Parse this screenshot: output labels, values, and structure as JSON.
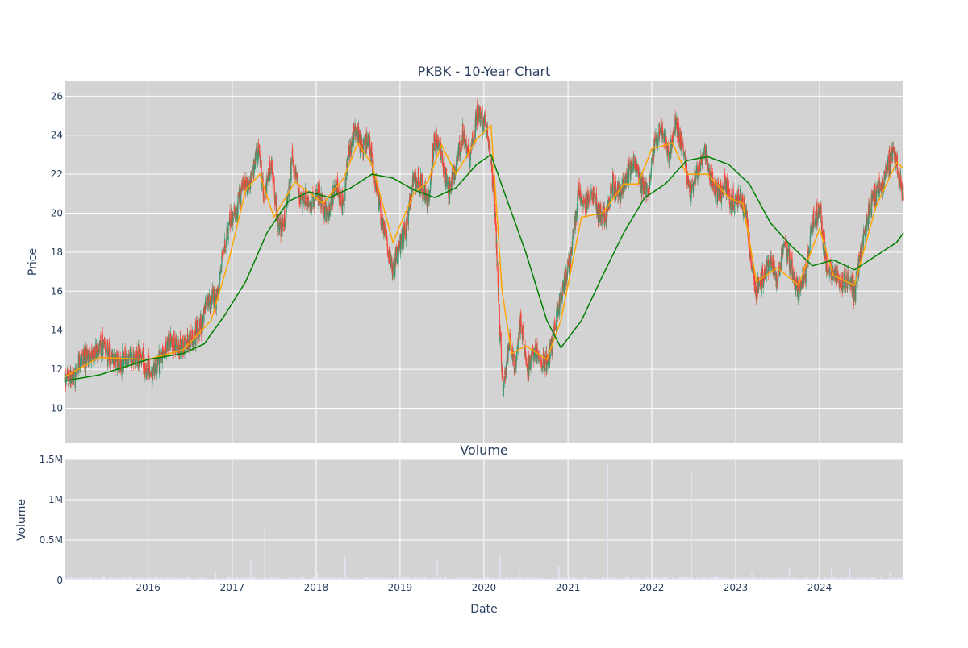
{
  "chart_data": {
    "type": "candlestick",
    "title": "PKBK - 10-Year Chart",
    "x_range": [
      "2015-01-02",
      "2024-12-31"
    ],
    "x_ticks": [
      "2016",
      "2017",
      "2018",
      "2019",
      "2020",
      "2021",
      "2022",
      "2023",
      "2024"
    ],
    "xlabel": "Date",
    "grid": true,
    "price_panel": {
      "ylabel": "Price",
      "ylim": [
        8.2,
        26.8
      ],
      "y_ticks": [
        10,
        12,
        14,
        16,
        18,
        20,
        22,
        24,
        26
      ],
      "colors": {
        "increasing": "#3d9970",
        "decreasing": "#ff4136",
        "ma_short": "#ffa500",
        "ma_long": "#008000",
        "background": "#d3d3d3",
        "grid": "#ffffff"
      },
      "close_path": [
        [
          "2015-01-02",
          11.5
        ],
        [
          "2015-02-15",
          11.6
        ],
        [
          "2015-03-20",
          12.5
        ],
        [
          "2015-05-01",
          12.6
        ],
        [
          "2015-06-01",
          13.2
        ],
        [
          "2015-07-15",
          12.7
        ],
        [
          "2015-09-01",
          12.3
        ],
        [
          "2015-10-15",
          12.6
        ],
        [
          "2015-12-01",
          12.7
        ],
        [
          "2016-01-20",
          11.6
        ],
        [
          "2016-02-20",
          12.6
        ],
        [
          "2016-04-01",
          13.4
        ],
        [
          "2016-05-15",
          13.1
        ],
        [
          "2016-07-01",
          13.3
        ],
        [
          "2016-08-15",
          14.2
        ],
        [
          "2016-09-15",
          15.4
        ],
        [
          "2016-11-01",
          15.8
        ],
        [
          "2016-11-20",
          17.8
        ],
        [
          "2016-12-20",
          19.5
        ],
        [
          "2017-01-20",
          20.1
        ],
        [
          "2017-02-15",
          21.4
        ],
        [
          "2017-03-20",
          21.6
        ],
        [
          "2017-04-25",
          23.2
        ],
        [
          "2017-05-20",
          20.8
        ],
        [
          "2017-06-20",
          22.6
        ],
        [
          "2017-07-20",
          19.3
        ],
        [
          "2017-08-20",
          19.6
        ],
        [
          "2017-09-20",
          22.8
        ],
        [
          "2017-10-20",
          20.8
        ],
        [
          "2017-12-01",
          20.6
        ],
        [
          "2018-01-15",
          21.0
        ],
        [
          "2018-02-15",
          19.8
        ],
        [
          "2018-03-15",
          20.8
        ],
        [
          "2018-04-01",
          21.5
        ],
        [
          "2018-05-01",
          20.4
        ],
        [
          "2018-05-20",
          23.0
        ],
        [
          "2018-06-20",
          24.2
        ],
        [
          "2018-07-20",
          23.5
        ],
        [
          "2018-08-20",
          23.6
        ],
        [
          "2018-09-15",
          21.5
        ],
        [
          "2018-10-10",
          19.8
        ],
        [
          "2018-11-05",
          18.5
        ],
        [
          "2018-12-01",
          17.2
        ],
        [
          "2018-12-25",
          18.0
        ],
        [
          "2019-02-01",
          19.5
        ],
        [
          "2019-03-01",
          21.8
        ],
        [
          "2019-04-01",
          21.5
        ],
        [
          "2019-05-01",
          20.5
        ],
        [
          "2019-06-01",
          23.8
        ],
        [
          "2019-07-01",
          23.0
        ],
        [
          "2019-08-01",
          21.0
        ],
        [
          "2019-09-01",
          22.5
        ],
        [
          "2019-10-01",
          24.0
        ],
        [
          "2019-11-01",
          23.0
        ],
        [
          "2019-12-01",
          25.0
        ],
        [
          "2020-01-15",
          24.5
        ],
        [
          "2020-02-15",
          21.0
        ],
        [
          "2020-03-10",
          14.0
        ],
        [
          "2020-03-25",
          11.0
        ],
        [
          "2020-04-20",
          13.5
        ],
        [
          "2020-05-15",
          12.0
        ],
        [
          "2020-06-10",
          14.5
        ],
        [
          "2020-07-10",
          12.0
        ],
        [
          "2020-08-10",
          13.0
        ],
        [
          "2020-09-10",
          12.2
        ],
        [
          "2020-10-10",
          12.5
        ],
        [
          "2020-11-10",
          14.5
        ],
        [
          "2020-12-10",
          16.0
        ],
        [
          "2021-01-15",
          18.0
        ],
        [
          "2021-02-15",
          21.0
        ],
        [
          "2021-03-15",
          20.5
        ],
        [
          "2021-04-15",
          21.0
        ],
        [
          "2021-05-15",
          20.0
        ],
        [
          "2021-06-15",
          19.8
        ],
        [
          "2021-07-15",
          21.5
        ],
        [
          "2021-08-15",
          21.0
        ],
        [
          "2021-09-15",
          22.0
        ],
        [
          "2021-10-15",
          22.5
        ],
        [
          "2021-11-15",
          21.5
        ],
        [
          "2021-12-15",
          21.0
        ],
        [
          "2022-01-15",
          23.8
        ],
        [
          "2022-02-15",
          24.2
        ],
        [
          "2022-03-15",
          23.0
        ],
        [
          "2022-04-15",
          24.5
        ],
        [
          "2022-05-15",
          23.5
        ],
        [
          "2022-06-15",
          21.0
        ],
        [
          "2022-07-15",
          22.0
        ],
        [
          "2022-08-15",
          23.2
        ],
        [
          "2022-09-15",
          22.0
        ],
        [
          "2022-10-15",
          21.0
        ],
        [
          "2022-11-15",
          21.5
        ],
        [
          "2022-12-15",
          20.5
        ],
        [
          "2023-01-15",
          20.8
        ],
        [
          "2023-02-15",
          20.0
        ],
        [
          "2023-03-10",
          17.5
        ],
        [
          "2023-04-01",
          16.0
        ],
        [
          "2023-05-01",
          16.8
        ],
        [
          "2023-06-01",
          17.5
        ],
        [
          "2023-07-01",
          16.5
        ],
        [
          "2023-08-01",
          18.5
        ],
        [
          "2023-09-01",
          17.2
        ],
        [
          "2023-10-01",
          16.0
        ],
        [
          "2023-11-01",
          17.0
        ],
        [
          "2023-12-01",
          19.5
        ],
        [
          "2024-01-01",
          20.2
        ],
        [
          "2024-02-01",
          17.3
        ],
        [
          "2024-03-01",
          17.0
        ],
        [
          "2024-04-01",
          16.3
        ],
        [
          "2024-05-01",
          16.8
        ],
        [
          "2024-06-01",
          15.8
        ],
        [
          "2024-07-01",
          18.2
        ],
        [
          "2024-08-01",
          20.0
        ],
        [
          "2024-09-01",
          21.0
        ],
        [
          "2024-10-01",
          21.3
        ],
        [
          "2024-11-15",
          23.3
        ],
        [
          "2024-12-31",
          20.8
        ]
      ],
      "ma_short": [
        [
          "2015-01-02",
          11.6
        ],
        [
          "2015-06-01",
          12.6
        ],
        [
          "2016-01-01",
          12.5
        ],
        [
          "2016-06-01",
          13.0
        ],
        [
          "2016-10-01",
          14.5
        ],
        [
          "2016-12-15",
          17.5
        ],
        [
          "2017-03-01",
          21.2
        ],
        [
          "2017-05-01",
          22.0
        ],
        [
          "2017-07-01",
          19.8
        ],
        [
          "2017-10-01",
          21.6
        ],
        [
          "2018-02-01",
          20.5
        ],
        [
          "2018-05-01",
          21.8
        ],
        [
          "2018-07-01",
          23.6
        ],
        [
          "2018-09-01",
          22.5
        ],
        [
          "2018-12-01",
          18.5
        ],
        [
          "2019-03-01",
          21.0
        ],
        [
          "2019-05-01",
          21.6
        ],
        [
          "2019-07-01",
          23.5
        ],
        [
          "2019-09-01",
          22.0
        ],
        [
          "2019-12-01",
          23.8
        ],
        [
          "2020-02-01",
          24.5
        ],
        [
          "2020-03-20",
          16.0
        ],
        [
          "2020-05-01",
          12.8
        ],
        [
          "2020-07-01",
          13.2
        ],
        [
          "2020-10-01",
          12.5
        ],
        [
          "2020-12-01",
          14.5
        ],
        [
          "2021-03-01",
          19.8
        ],
        [
          "2021-06-01",
          20.0
        ],
        [
          "2021-09-01",
          21.5
        ],
        [
          "2021-11-01",
          21.5
        ],
        [
          "2022-01-01",
          23.3
        ],
        [
          "2022-04-01",
          23.6
        ],
        [
          "2022-06-01",
          22.0
        ],
        [
          "2022-09-01",
          22.0
        ],
        [
          "2022-12-01",
          20.8
        ],
        [
          "2023-02-01",
          20.5
        ],
        [
          "2023-04-01",
          16.5
        ],
        [
          "2023-07-01",
          17.2
        ],
        [
          "2023-10-01",
          16.3
        ],
        [
          "2024-01-01",
          19.2
        ],
        [
          "2024-03-01",
          16.8
        ],
        [
          "2024-06-01",
          16.3
        ],
        [
          "2024-09-01",
          20.3
        ],
        [
          "2024-12-01",
          22.6
        ],
        [
          "2024-12-31",
          22.3
        ]
      ],
      "ma_long": [
        [
          "2015-01-02",
          11.4
        ],
        [
          "2015-06-01",
          11.7
        ],
        [
          "2016-01-01",
          12.5
        ],
        [
          "2016-06-01",
          12.8
        ],
        [
          "2016-09-01",
          13.3
        ],
        [
          "2016-12-01",
          14.8
        ],
        [
          "2017-03-01",
          16.5
        ],
        [
          "2017-06-01",
          19.0
        ],
        [
          "2017-09-01",
          20.6
        ],
        [
          "2017-12-01",
          21.1
        ],
        [
          "2018-03-01",
          20.8
        ],
        [
          "2018-06-01",
          21.3
        ],
        [
          "2018-09-01",
          22.0
        ],
        [
          "2018-12-01",
          21.8
        ],
        [
          "2019-03-01",
          21.2
        ],
        [
          "2019-06-01",
          20.8
        ],
        [
          "2019-09-01",
          21.3
        ],
        [
          "2019-12-01",
          22.5
        ],
        [
          "2020-02-01",
          23.0
        ],
        [
          "2020-04-01",
          21.0
        ],
        [
          "2020-07-01",
          18.0
        ],
        [
          "2020-10-01",
          14.5
        ],
        [
          "2020-12-01",
          13.1
        ],
        [
          "2021-03-01",
          14.5
        ],
        [
          "2021-06-01",
          16.8
        ],
        [
          "2021-09-01",
          19.0
        ],
        [
          "2021-12-01",
          20.8
        ],
        [
          "2022-03-01",
          21.5
        ],
        [
          "2022-06-01",
          22.7
        ],
        [
          "2022-09-01",
          22.9
        ],
        [
          "2022-12-01",
          22.5
        ],
        [
          "2023-03-01",
          21.5
        ],
        [
          "2023-06-01",
          19.5
        ],
        [
          "2023-09-01",
          18.3
        ],
        [
          "2023-12-01",
          17.3
        ],
        [
          "2024-03-01",
          17.6
        ],
        [
          "2024-06-01",
          17.1
        ],
        [
          "2024-09-01",
          17.8
        ],
        [
          "2024-12-01",
          18.5
        ],
        [
          "2024-12-31",
          19.0
        ]
      ]
    },
    "volume_panel": {
      "title": "Volume",
      "ylabel": "Volume",
      "ylim": [
        0,
        1500000
      ],
      "y_ticks": [
        0,
        500000,
        1000000,
        1500000
      ],
      "y_tick_labels": [
        "0",
        "0.5M",
        "1M",
        "1.5M"
      ],
      "bar_color": "#e6e6fa",
      "baseline": 20000,
      "spikes": [
        [
          "2015-06-15",
          60000
        ],
        [
          "2016-10-20",
          100000
        ],
        [
          "2017-03-20",
          250000
        ],
        [
          "2017-05-20",
          620000
        ],
        [
          "2018-01-05",
          90000
        ],
        [
          "2018-05-05",
          300000
        ],
        [
          "2019-01-10",
          80000
        ],
        [
          "2019-06-10",
          270000
        ],
        [
          "2020-03-10",
          320000
        ],
        [
          "2020-06-01",
          140000
        ],
        [
          "2020-11-20",
          180000
        ],
        [
          "2021-06-20",
          1450000
        ],
        [
          "2022-06-20",
          1330000
        ],
        [
          "2022-02-20",
          80000
        ],
        [
          "2022-10-01",
          70000
        ],
        [
          "2023-03-10",
          90000
        ],
        [
          "2023-08-20",
          160000
        ],
        [
          "2024-02-20",
          160000
        ],
        [
          "2024-05-10",
          140000
        ],
        [
          "2024-06-10",
          140000
        ],
        [
          "2024-11-01",
          90000
        ]
      ]
    }
  }
}
